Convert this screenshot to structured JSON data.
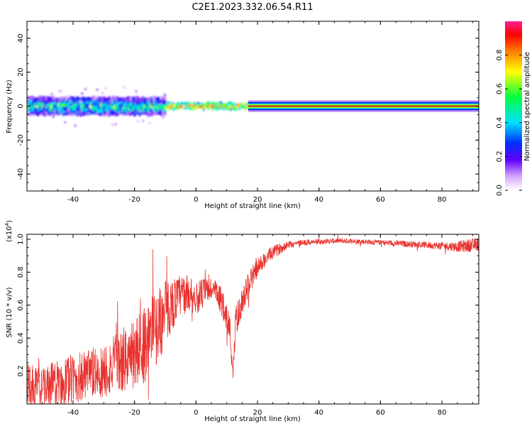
{
  "title": "C2E1.2023.332.06.54.R11",
  "chart_data": [
    {
      "type": "heatmap",
      "ylabel": "Frequency (Hz)",
      "xlabel": "Height of straight line (km)",
      "xlim": [
        -55,
        92
      ],
      "ylim": [
        -50,
        50
      ],
      "xticks": [
        -40,
        -20,
        0,
        20,
        40,
        60,
        80
      ],
      "yticks": [
        -40,
        -20,
        0,
        20,
        40
      ],
      "colorbar": {
        "label": "Normalized spectral amplitude",
        "ticks": [
          0.0,
          0.2,
          0.4,
          0.6,
          0.8
        ],
        "range": [
          0,
          1
        ]
      },
      "band_segments": [
        {
          "x0": -55,
          "x1": -10,
          "center_hz": 0,
          "half_width_hz": 5,
          "peak": 0.55,
          "texture": "speckled"
        },
        {
          "x0": -10,
          "x1": 17,
          "center_hz": 0,
          "half_width_hz": 2,
          "peak": 0.9,
          "texture": "beaded"
        },
        {
          "x0": 17,
          "x1": 92,
          "center_hz": 0,
          "half_width_hz": 1.5,
          "peak": 1.0,
          "texture": "continuous"
        }
      ]
    },
    {
      "type": "line",
      "ylabel": "SNR (10 * v/v)",
      "scale_label": "(x10",
      "scale_exp": "4",
      "xlabel": "Height of straight line (km)",
      "xlim": [
        -55,
        92
      ],
      "ylim": [
        0,
        1.03
      ],
      "xticks": [
        -40,
        -20,
        0,
        20,
        40,
        60,
        80
      ],
      "yticks": [
        0.2,
        0.4,
        0.6,
        0.8,
        1.0
      ],
      "color": "#e8312d",
      "series": [
        {
          "x": [
            -55,
            -50,
            -45,
            -40,
            -35,
            -30,
            -25,
            -20,
            -17,
            -15,
            -12,
            -10,
            -8,
            -5,
            -2,
            0,
            3,
            5,
            7,
            9,
            11,
            12,
            13,
            15,
            17,
            19,
            22,
            25,
            28,
            30,
            35,
            40,
            45,
            50,
            55,
            60,
            65,
            70,
            75,
            80,
            85,
            88,
            90,
            92
          ],
          "y": [
            0.12,
            0.1,
            0.12,
            0.15,
            0.17,
            0.2,
            0.25,
            0.3,
            0.36,
            0.42,
            0.48,
            0.55,
            0.6,
            0.66,
            0.67,
            0.64,
            0.68,
            0.7,
            0.66,
            0.6,
            0.45,
            0.2,
            0.5,
            0.62,
            0.72,
            0.8,
            0.87,
            0.92,
            0.95,
            0.97,
            0.98,
            0.985,
            0.99,
            0.99,
            0.985,
            0.98,
            0.975,
            0.97,
            0.965,
            0.96,
            0.955,
            0.96,
            0.965,
            0.97
          ],
          "noise": [
            0.08,
            0.08,
            0.09,
            0.1,
            0.1,
            0.11,
            0.12,
            0.14,
            0.15,
            0.15,
            0.14,
            0.13,
            0.1,
            0.08,
            0.07,
            0.06,
            0.06,
            0.05,
            0.05,
            0.06,
            0.06,
            0.05,
            0.06,
            0.05,
            0.05,
            0.04,
            0.03,
            0.025,
            0.02,
            0.015,
            0.012,
            0.01,
            0.01,
            0.01,
            0.01,
            0.01,
            0.012,
            0.012,
            0.013,
            0.015,
            0.02,
            0.025,
            0.025,
            0.025
          ]
        }
      ]
    }
  ]
}
